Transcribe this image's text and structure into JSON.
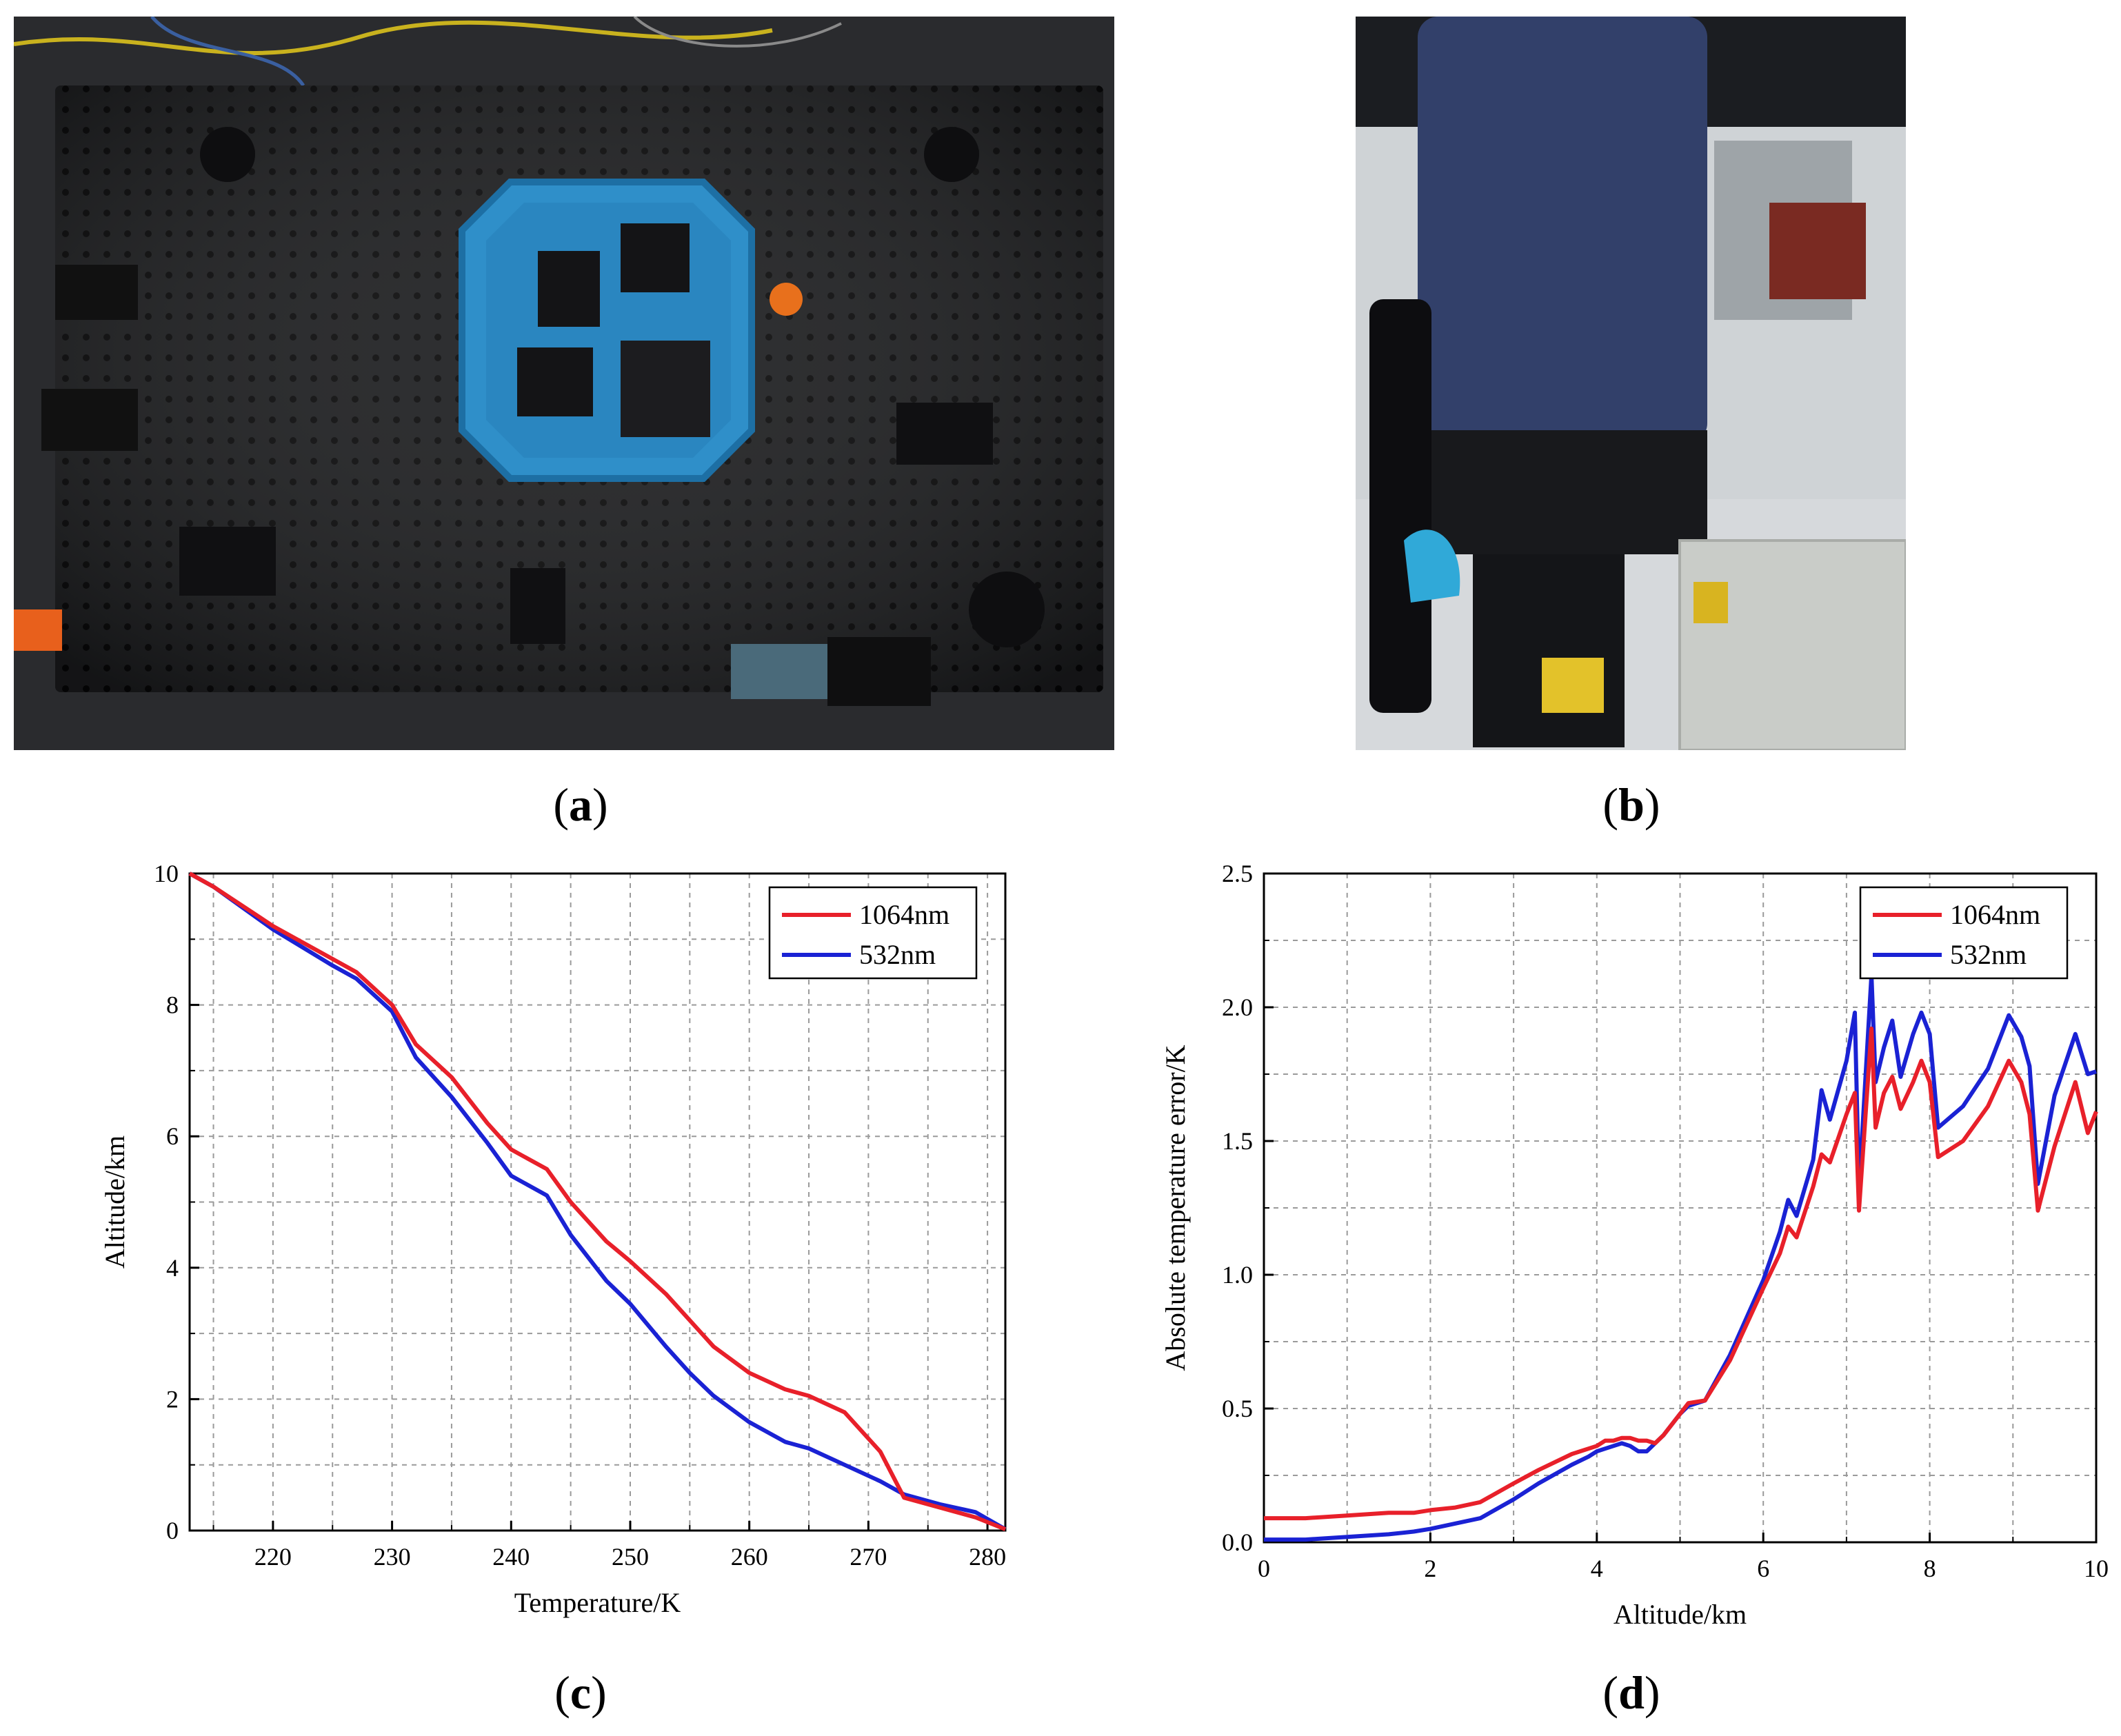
{
  "figure": {
    "panel_labels": [
      {
        "open": "(",
        "letter": "a",
        "close": ")"
      },
      {
        "open": "(",
        "letter": "b",
        "close": ")"
      },
      {
        "open": "(",
        "letter": "c",
        "close": ")"
      },
      {
        "open": "(",
        "letter": "d",
        "close": ")"
      }
    ]
  },
  "photos": {
    "a": {
      "subject": "optical-breadboard-photo"
    },
    "b": {
      "subject": "telescope-receiver-photo"
    }
  },
  "chart_data": [
    {
      "id": "c",
      "type": "line",
      "title": "",
      "xlabel": "Temperature/K",
      "ylabel": "Altitude/km",
      "xlim": [
        213,
        281.5
      ],
      "ylim": [
        0,
        10
      ],
      "xticks": [
        220,
        230,
        240,
        250,
        260,
        270,
        280
      ],
      "yticks": [
        0,
        2,
        4,
        6,
        8,
        10
      ],
      "grid": true,
      "legend_position": "top-right",
      "series": [
        {
          "name": "1064nm",
          "color": "#e8202a",
          "x": [
            213,
            215,
            220,
            225,
            227,
            230,
            232,
            235,
            238,
            240,
            243,
            245,
            248,
            250,
            253,
            255,
            257,
            260,
            263,
            265,
            268,
            271,
            273,
            276,
            279,
            281.5
          ],
          "y": [
            10,
            9.8,
            9.2,
            8.7,
            8.5,
            8.0,
            7.4,
            6.9,
            6.2,
            5.8,
            5.5,
            5.0,
            4.4,
            4.1,
            3.6,
            3.2,
            2.8,
            2.4,
            2.15,
            2.05,
            1.8,
            1.2,
            0.5,
            0.35,
            0.2,
            0.02
          ]
        },
        {
          "name": "532nm",
          "color": "#1a22d4",
          "x": [
            213,
            215,
            220,
            225,
            227,
            230,
            232,
            235,
            238,
            240,
            243,
            245,
            248,
            250,
            253,
            255,
            257,
            260,
            263,
            265,
            268,
            271,
            273,
            276,
            279,
            281.5
          ],
          "y": [
            10,
            9.8,
            9.15,
            8.6,
            8.4,
            7.9,
            7.2,
            6.6,
            5.9,
            5.4,
            5.1,
            4.5,
            3.8,
            3.45,
            2.8,
            2.4,
            2.05,
            1.65,
            1.35,
            1.25,
            1.0,
            0.75,
            0.55,
            0.4,
            0.28,
            0.02
          ]
        }
      ]
    },
    {
      "id": "d",
      "type": "line",
      "title": "",
      "xlabel": "Altitude/km",
      "ylabel": "Absolute temperature error/K",
      "xlim": [
        0,
        10
      ],
      "ylim": [
        0,
        2.5
      ],
      "xticks": [
        0,
        2,
        4,
        6,
        8,
        10
      ],
      "yticks": [
        "0.0",
        "0.5",
        "1.0",
        "1.5",
        "2.0",
        "2.5"
      ],
      "grid": true,
      "legend_position": "top-right",
      "series": [
        {
          "name": "1064nm",
          "color": "#e8202a",
          "x": [
            0,
            0.5,
            1,
            1.5,
            1.8,
            2,
            2.3,
            2.6,
            3,
            3.3,
            3.7,
            4,
            4.1,
            4.2,
            4.3,
            4.4,
            4.5,
            4.6,
            4.7,
            4.8,
            5,
            5.1,
            5.3,
            5.6,
            6,
            6.2,
            6.3,
            6.4,
            6.6,
            6.7,
            6.8,
            7,
            7.1,
            7.15,
            7.3,
            7.35,
            7.45,
            7.55,
            7.65,
            7.8,
            7.9,
            8,
            8.1,
            8.4,
            8.7,
            8.95,
            9.1,
            9.2,
            9.3,
            9.5,
            9.75,
            9.9,
            10
          ],
          "y": [
            0.09,
            0.09,
            0.1,
            0.11,
            0.11,
            0.12,
            0.13,
            0.15,
            0.22,
            0.27,
            0.33,
            0.36,
            0.38,
            0.38,
            0.39,
            0.39,
            0.38,
            0.38,
            0.37,
            0.4,
            0.48,
            0.52,
            0.53,
            0.68,
            0.95,
            1.08,
            1.18,
            1.14,
            1.33,
            1.45,
            1.42,
            1.6,
            1.68,
            1.24,
            1.92,
            1.55,
            1.68,
            1.74,
            1.62,
            1.72,
            1.8,
            1.72,
            1.44,
            1.5,
            1.63,
            1.8,
            1.72,
            1.6,
            1.24,
            1.48,
            1.72,
            1.53,
            1.61
          ]
        },
        {
          "name": "532nm",
          "color": "#1a22d4",
          "x": [
            0,
            0.5,
            1,
            1.5,
            1.8,
            2,
            2.3,
            2.6,
            3,
            3.3,
            3.7,
            3.9,
            4,
            4.1,
            4.2,
            4.3,
            4.4,
            4.5,
            4.6,
            4.7,
            4.8,
            5,
            5.1,
            5.3,
            5.6,
            6,
            6.2,
            6.3,
            6.4,
            6.6,
            6.7,
            6.8,
            7,
            7.1,
            7.15,
            7.3,
            7.35,
            7.45,
            7.55,
            7.65,
            7.8,
            7.9,
            8,
            8.1,
            8.4,
            8.7,
            8.95,
            9.1,
            9.2,
            9.3,
            9.5,
            9.75,
            9.9,
            10
          ],
          "y": [
            0.01,
            0.01,
            0.02,
            0.03,
            0.04,
            0.05,
            0.07,
            0.09,
            0.16,
            0.22,
            0.29,
            0.32,
            0.34,
            0.35,
            0.36,
            0.37,
            0.36,
            0.34,
            0.34,
            0.37,
            0.4,
            0.48,
            0.51,
            0.53,
            0.7,
            0.98,
            1.16,
            1.28,
            1.22,
            1.43,
            1.69,
            1.58,
            1.8,
            1.98,
            1.32,
            2.12,
            1.72,
            1.85,
            1.95,
            1.74,
            1.9,
            1.98,
            1.9,
            1.55,
            1.63,
            1.77,
            1.97,
            1.89,
            1.78,
            1.34,
            1.67,
            1.9,
            1.75,
            1.76
          ]
        }
      ]
    }
  ]
}
